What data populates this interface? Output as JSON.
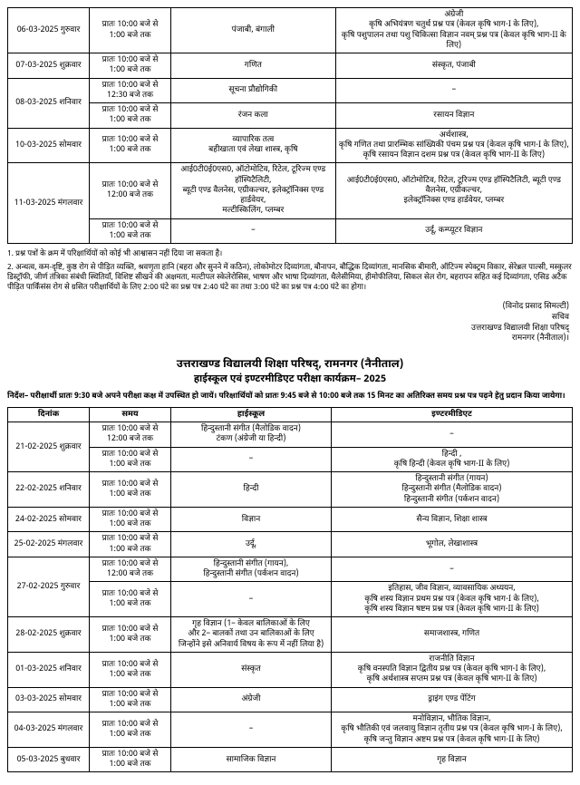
{
  "top_table": {
    "rows": [
      {
        "date": "06-03-2025 गुरुवार",
        "slots": [
          {
            "time": "प्रातः 10:00 बजे से\n1:00 बजे तक",
            "hs": "पंजाबी,        बंगाली",
            "inter": "अंग्रेजी\nकृषि अभियंत्रण चतुर्थ प्रश्न पत्र (केवल कृषि भाग-I के लिए),\nकृषि पशुपालन तथा पशु चिकित्सा विज्ञान नवम् प्रश्न पत्र (केवल कृषि भाग-II के लिए)"
          }
        ]
      },
      {
        "date": "07-03-2025 शुक्रवार",
        "slots": [
          {
            "time": "प्रातः 10:00 बजे से\n1:00 बजे तक",
            "hs": "गणित",
            "inter": "संस्कृत,                    पंजाबी"
          }
        ]
      },
      {
        "date": "08-03-2025 शनिवार",
        "slots": [
          {
            "time": "प्रातः 10:00 बजे से\n12:30 बजे तक",
            "hs": "सूचना प्रौद्योगिकी",
            "inter": "–"
          },
          {
            "time": "प्रातः 10:00 बजे से\n1:00 बजे तक",
            "hs": "रंजन कला",
            "inter": "रसायन विज्ञान"
          }
        ]
      },
      {
        "date": "10-03-2025 सोमवार",
        "slots": [
          {
            "time": "प्रातः 10:00 बजे से\n1:00 बजे तक",
            "hs": "व्यापारिक तत्व\nबहीखाता एवं लेखा शास्त्र,        कृषि",
            "inter": "अर्थशास्त्र,\nकृषि गणित तथा प्रारम्भिक सांख्यिकी पंचम प्रश्न पत्र (केवल कृषि भाग-I के लिए),\nकृषि रसायन विज्ञान दशम प्रश्न पत्र (केवल कृषि भाग-II के लिए)"
          }
        ]
      },
      {
        "date": "11-03-2025 मंगलवार",
        "slots": [
          {
            "time": "प्रातः 10:00 बजे से\n12:00 बजे तक",
            "hs": "आई0टी0ई0एस0, ऑटोमोटिव, रिटेल, टूरिज्म एण्ड हॉस्पिटैलिटी,\nब्यूटी एण्ड वैलनेस, एग्रीकल्चर, इलेक्ट्रॉनिक्स एण्ड हार्डवेयर,\nमल्टीस्किलिंग, प्लम्बर",
            "inter": "आई0टी0ई0एस0, ऑटोमोटिव, रिटेल, टूरिज्म एण्ड हॉस्पिटैलिटी, ब्यूटी एण्ड वैलनेस, एग्रीकल्चर,\nइलेक्ट्रॉनिक्स एण्ड हार्डवेयर, प्लम्बर"
          },
          {
            "time": "प्रातः 10:00 बजे से\n1:00 बजे तक",
            "hs": "–",
            "inter": "उर्दू,                    कम्प्यूटर विज्ञान"
          }
        ]
      }
    ]
  },
  "note1": "1. प्रश्न पत्रों के क्रम में परिक्षार्थियों को कोई भी आश्वासन नहीं दिया जा सकता है।",
  "note2": "2. अन्धत्व, कम-दृष्टि, कुष्ठ रोग से पीड़ित व्यक्ति, श्रवणृता हानि (बहरा और सुनने में कठिन), लोकोमोटर दिव्यांगता, बौनापन, बौद्धिक दिव्यांगता, मानसिक बीमारी, ऑटिज्म स्पेक्ट्रम विकार, सेरेब्रल पाल्सी, मस्कुलर डिस्ट्रॉफी, जीर्ण तंत्रिका संबंधी स्थितियाँ, विशिष्ट सीखने की अक्षमता, मल्टीपल स्केलेरोसिस, भाषण और भाषा दिव्यांगता, थैलेसीमिया, हीमोफीलिया, सिकल सेल रोग, बहरापन सहित कई दिव्यांगता, एसिड अटैक पीड़ित पार्किंसंस रोग से ग्रसित परीक्षार्थियों के लिए 2:00 घंटे का प्रश्न पत्र 2:40 घंटे का तथा 3:00 घंटे का प्रश्न पत्र 4:00 घंटे का होगा।",
  "sig1": "(विनोद प्रसाद सिमल्टी)",
  "sig2": "सचिव",
  "sig3": "उत्तराखण्ड विद्यालयी शिक्षा परिषद्",
  "sig4": "रामनगर (नैनीताल)।",
  "title": "उत्तराखण्ड विद्यालयी शिक्षा परिषद्, रामनगर (नैनीताल)",
  "subtitle": "हाईस्कूल एवं इण्टरमीडिएट परीक्षा कार्यक्रम– 2025",
  "instr": "निर्देश– परीक्षार्थी प्रातः 9:30 बजे अपने परीक्षा कक्ष में उपस्थित हो जायें। परिक्षार्थियों को प्रातः 9:45 बजे से 10:00 बजे तक 15 मिनट का अतिरिक्त समय प्रश्न पत्र पढ़ने हेतु प्रदान किया जायेगा।",
  "hdr": {
    "date": "दिनांक",
    "time": "समय",
    "hs": "हाईस्कूल",
    "inter": "इण्टरमीडिएट"
  },
  "main_table": {
    "rows": [
      {
        "date": "21-02-2025 शुक्रवार",
        "slots": [
          {
            "time": "प्रातः 10:00 बजे से\n12:00 बजे तक",
            "hs": "हिन्दुस्तानी संगीत (मैलोडिक वादन)\nटंकण (अंग्रेजी या हिन्दी)",
            "inter": "–"
          },
          {
            "time": "प्रातः 10:00 बजे से\n1:00 बजे तक",
            "hs": "–",
            "inter": "हिन्दी  ,\nकृषि हिन्दी (केवल कृषि भाग-II के लिए)"
          }
        ]
      },
      {
        "date": "22-02-2025 शनिवार",
        "slots": [
          {
            "time": "प्रातः 10:00 बजे से\n1:00 बजे तक",
            "hs": "हिन्दी",
            "inter": "हिन्दुस्तानी संगीत (गायन)\nहिन्दुस्तानी संगीत (मैलोडिक वादन)\nहिन्दुस्तानी संगीत (पर्कशन वादन)"
          }
        ]
      },
      {
        "date": "24-02-2025 सोमवार",
        "slots": [
          {
            "time": "प्रातः 10:00 बजे से\n1:00 बजे तक",
            "hs": "विज्ञान",
            "inter": "सैन्य विज्ञान,                    शिक्षा शास्त्र"
          }
        ]
      },
      {
        "date": "25-02-2025 मंगलवार",
        "slots": [
          {
            "time": "प्रातः 10:00 बजे से\n1:00 बजे तक",
            "hs": "उर्दू,",
            "inter": "भूगोल,                    लेखाशास्त्र"
          }
        ]
      },
      {
        "date": "27-02-2025 गुरुवार",
        "slots": [
          {
            "time": "प्रातः 10:00 बजे से\n12:00 बजे तक",
            "hs": "हिन्दुस्तानी संगीत (गायन),\nहिन्दुस्तानी संगीत (पर्कशन वादन)",
            "inter": "–"
          },
          {
            "time": "प्रातः 10:00 बजे से\n1:00 बजे तक",
            "hs": "–",
            "inter": "इतिहास,        जीव विज्ञान,        व्यावसायिक अध्ययन,\nकृषि शस्य विज्ञान प्रथम प्रश्न पत्र (केवल कृषि भाग-I के लिए),\nकृषि शस्य विज्ञान षष्टम प्रश्न पत्र (केवल कृषि भाग-II के लिए)"
          }
        ]
      },
      {
        "date": "28-02-2025 शुक्रवार",
        "slots": [
          {
            "time": "प्रातः 10:00 बजे से\n1:00 बजे तक",
            "hs": "गृह विज्ञान (1– केवल बालिकाओं के लिए\nऔर 2– बालकों तथा उन बालिकाओं के लिए\nजिन्होंने इसे अनिवार्य विषय के रूप में नहीं लिया है)",
            "inter": "समाजशास्त्र,                    गणित"
          }
        ]
      },
      {
        "date": "01-03-2025 शनिवार",
        "slots": [
          {
            "time": "प्रातः 10:00 बजे से\n1:00 बजे तक",
            "hs": "संस्कृत",
            "inter": "राजनीति विज्ञान\nकृषि वनस्पति विज्ञान द्वितीय प्रश्न पत्र (केवल कृषि भाग-I के लिए),\nकृषि अर्थशास्त्र सप्तम प्रश्न पत्र (केवल कृषि भाग-II के लिए)"
          }
        ]
      },
      {
        "date": "03-03-2025 सोमवार",
        "slots": [
          {
            "time": "प्रातः 10:00 बजे से\n1:00 बजे तक",
            "hs": "अंग्रेजी",
            "inter": "ड्राइंग एण्ड पेंटिंग"
          }
        ]
      },
      {
        "date": "04-03-2025 मंगलवार",
        "slots": [
          {
            "time": "प्रातः 10:00 बजे से\n1:00 बजे तक",
            "hs": "–",
            "inter": "मनोविज्ञान,                    भौतिक विज्ञान,\nकृषि भौतिकी एवं जलवायु विज्ञान तृतीय प्रश्न पत्र (केवल कृषि भाग-I के लिए),\nकृषि जन्तु विज्ञान अष्टम प्रश्न पत्र (केवल कृषि भाग-II के लिए)"
          }
        ]
      },
      {
        "date": "05-03-2025 बुधवार",
        "slots": [
          {
            "time": "प्रातः 10:00 बजे से\n1:00 बजे तक",
            "hs": "सामाजिक विज्ञान",
            "inter": "गृह विज्ञान"
          }
        ]
      }
    ]
  }
}
